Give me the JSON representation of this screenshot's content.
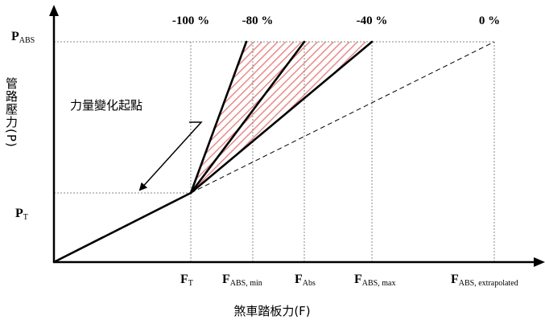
{
  "y_axis": {
    "label": "管路壓力(P)",
    "ticks": [
      {
        "main": "P",
        "sub": "ABS"
      },
      {
        "main": "P",
        "sub": "T"
      }
    ]
  },
  "x_axis": {
    "label": "煞車踏板力(F)",
    "ticks": [
      {
        "main": "F",
        "sub": "T"
      },
      {
        "main": "F",
        "sub": "ABS, min"
      },
      {
        "main": "F",
        "sub": "Abs"
      },
      {
        "main": "F",
        "sub": "ABS, max"
      },
      {
        "main": "F",
        "sub": "ABS, extrapolated"
      }
    ]
  },
  "top_labels": [
    "-100 %",
    "-80 %",
    "-40 %",
    "0 %"
  ],
  "annotation": "力量變化起點",
  "colors": {
    "hatch": "#e88a8a",
    "line": "#000000",
    "guide": "#888888"
  }
}
